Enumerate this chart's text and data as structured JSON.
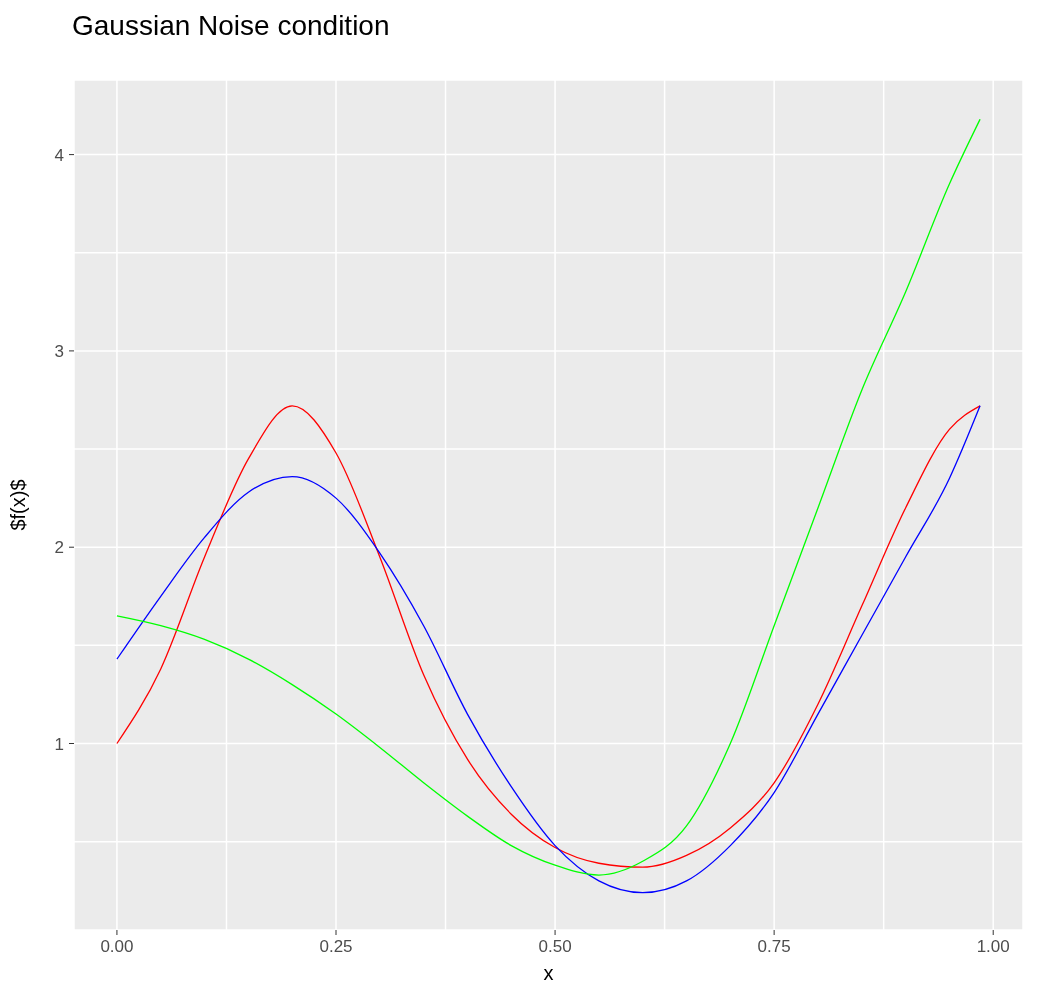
{
  "chart_data": {
    "type": "line",
    "title": "Gaussian Noise condition",
    "xlabel": "x",
    "ylabel": "$f(x)$",
    "x": [
      0,
      0.05,
      0.1,
      0.15,
      0.2,
      0.25,
      0.3,
      0.35,
      0.4,
      0.45,
      0.5,
      0.55,
      0.6,
      0.65,
      0.7,
      0.75,
      0.8,
      0.85,
      0.9,
      0.95,
      0.985
    ],
    "series": [
      {
        "color": "#ff0000",
        "values": [
          1.0,
          1.38,
          1.95,
          2.45,
          2.72,
          2.48,
          1.95,
          1.35,
          0.92,
          0.64,
          0.47,
          0.39,
          0.37,
          0.43,
          0.57,
          0.8,
          1.2,
          1.7,
          2.2,
          2.6,
          2.72
        ]
      },
      {
        "color": "#0000ff",
        "values": [
          1.43,
          1.75,
          2.05,
          2.28,
          2.36,
          2.25,
          1.97,
          1.6,
          1.15,
          0.78,
          0.48,
          0.3,
          0.24,
          0.3,
          0.48,
          0.75,
          1.15,
          1.55,
          1.95,
          2.35,
          2.72
        ]
      },
      {
        "color": "#00ff00",
        "values": [
          1.65,
          1.6,
          1.53,
          1.43,
          1.3,
          1.15,
          0.98,
          0.8,
          0.63,
          0.48,
          0.38,
          0.33,
          0.4,
          0.58,
          1.0,
          1.6,
          2.2,
          2.8,
          3.3,
          3.85,
          4.18
        ]
      }
    ],
    "xlim": [
      -0.049,
      1.034
    ],
    "ylim": [
      0.05,
      4.38
    ],
    "xticks": [
      {
        "value": 0,
        "label": "0.00"
      },
      {
        "value": 0.125,
        "label": null
      },
      {
        "value": 0.25,
        "label": "0.25"
      },
      {
        "value": 0.375,
        "label": null
      },
      {
        "value": 0.5,
        "label": "0.50"
      },
      {
        "value": 0.625,
        "label": null
      },
      {
        "value": 0.75,
        "label": "0.75"
      },
      {
        "value": 0.875,
        "label": null
      },
      {
        "value": 1,
        "label": "1.00"
      }
    ],
    "yticks": [
      {
        "value": 0.5,
        "label": null
      },
      1,
      {
        "value": 1.5,
        "label": null
      },
      2,
      {
        "value": 2.5,
        "label": null
      },
      3,
      {
        "value": 3.5,
        "label": null
      },
      4
    ],
    "grid": true,
    "marker": "none",
    "line_style": "solid"
  }
}
